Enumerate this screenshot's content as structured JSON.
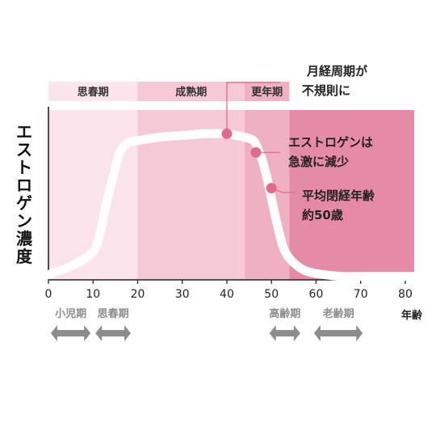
{
  "chart_data": {
    "type": "area",
    "ylabel": "エストロゲン濃度",
    "xlabel": "年齢",
    "xlim": [
      0,
      82
    ],
    "x_ticks": [
      0,
      10,
      20,
      30,
      40,
      50,
      60,
      70,
      80
    ],
    "phases": [
      {
        "label": "思春期",
        "start": 0,
        "end": 20,
        "color": "#fae3ea",
        "header_color": "#fbe4eb"
      },
      {
        "label": "成熟期",
        "start": 20,
        "end": 44,
        "color": "#f5c9d5",
        "header_color": "#f5c9d5"
      },
      {
        "label": "更年期",
        "start": 44,
        "end": 54,
        "color": "#efb1c1",
        "header_color": "#efb1c1"
      },
      {
        "label": "",
        "start": 54,
        "end": 82,
        "color": "#e58ba5",
        "header_color": ""
      }
    ],
    "series": [
      {
        "x": [
          0,
          5,
          9,
          11,
          13,
          15,
          16,
          17,
          18,
          20,
          25,
          30,
          35,
          40,
          42,
          44,
          46,
          47,
          48,
          49,
          50,
          51,
          52,
          53,
          55,
          58,
          62,
          66,
          70,
          75,
          82
        ],
        "y": [
          0.03,
          0.08,
          0.14,
          0.22,
          0.45,
          0.66,
          0.75,
          0.79,
          0.81,
          0.82,
          0.84,
          0.85,
          0.86,
          0.86,
          0.85,
          0.84,
          0.82,
          0.77,
          0.7,
          0.6,
          0.48,
          0.36,
          0.25,
          0.17,
          0.1,
          0.05,
          0.03,
          0.02,
          0.02,
          0.02,
          0.02
        ],
        "color": "#ffffff"
      }
    ],
    "annotations": [
      {
        "text": [
          "月経周期が",
          "不規則に"
        ],
        "x": 40,
        "y": 0.86
      },
      {
        "text": [
          "エストロゲンは",
          "急激に減少"
        ],
        "x": 46.5,
        "y": 0.75
      },
      {
        "text": [
          "平均閉経年齢",
          "約50歳"
        ],
        "x": 50,
        "y": 0.54
      }
    ],
    "marker_color": "#e26a8c",
    "life_stages": [
      {
        "label": "小児期",
        "start": 0,
        "end": 10
      },
      {
        "label": "思春期",
        "start": 10,
        "end": 19
      },
      {
        "label": "高齢期",
        "start": 49,
        "end": 57
      },
      {
        "label": "老齢期",
        "start": 59,
        "end": 71
      }
    ],
    "stage_color": "#8c8c8c"
  }
}
